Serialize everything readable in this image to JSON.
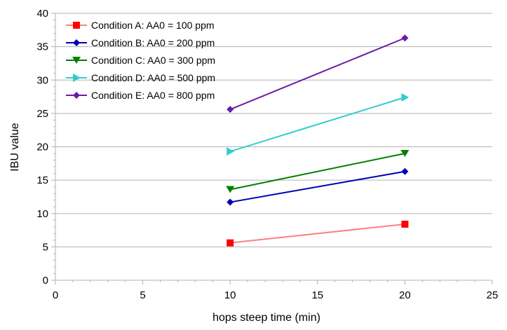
{
  "chart_data": {
    "type": "line",
    "title": "",
    "xlabel": "hops steep time (min)",
    "ylabel": "IBU value",
    "xlim": [
      0,
      25
    ],
    "ylim": [
      0,
      40
    ],
    "xticks": [
      0,
      5,
      10,
      15,
      20,
      25
    ],
    "yticks": [
      0,
      5,
      10,
      15,
      20,
      25,
      30,
      35,
      40
    ],
    "grid": "horizontal",
    "legend_position": "top-left",
    "series": [
      {
        "name": "Condition A: AA0 = 100 ppm",
        "color": "#ff7f7f",
        "marker_color": "#ff0000",
        "marker": "square",
        "x": [
          10,
          20
        ],
        "y": [
          5.6,
          8.4
        ]
      },
      {
        "name": "Condition B: AA0 = 200 ppm",
        "color": "#0000b3",
        "marker_color": "#0000b3",
        "marker": "diamond",
        "x": [
          10,
          20
        ],
        "y": [
          11.7,
          16.3
        ]
      },
      {
        "name": "Condition C: AA0 = 300 ppm",
        "color": "#008000",
        "marker_color": "#008000",
        "marker": "triangle-down",
        "x": [
          10,
          20
        ],
        "y": [
          13.6,
          19.0
        ]
      },
      {
        "name": "Condition D: AA0 = 500 ppm",
        "color": "#33cccc",
        "marker_color": "#33cccc",
        "marker": "triangle-right",
        "x": [
          10,
          20
        ],
        "y": [
          19.3,
          27.4
        ]
      },
      {
        "name": "Condition E: AA0 = 800 ppm",
        "color": "#6a1ba8",
        "marker_color": "#6a1ba8",
        "marker": "diamond",
        "x": [
          10,
          20
        ],
        "y": [
          25.6,
          36.3
        ]
      }
    ]
  }
}
